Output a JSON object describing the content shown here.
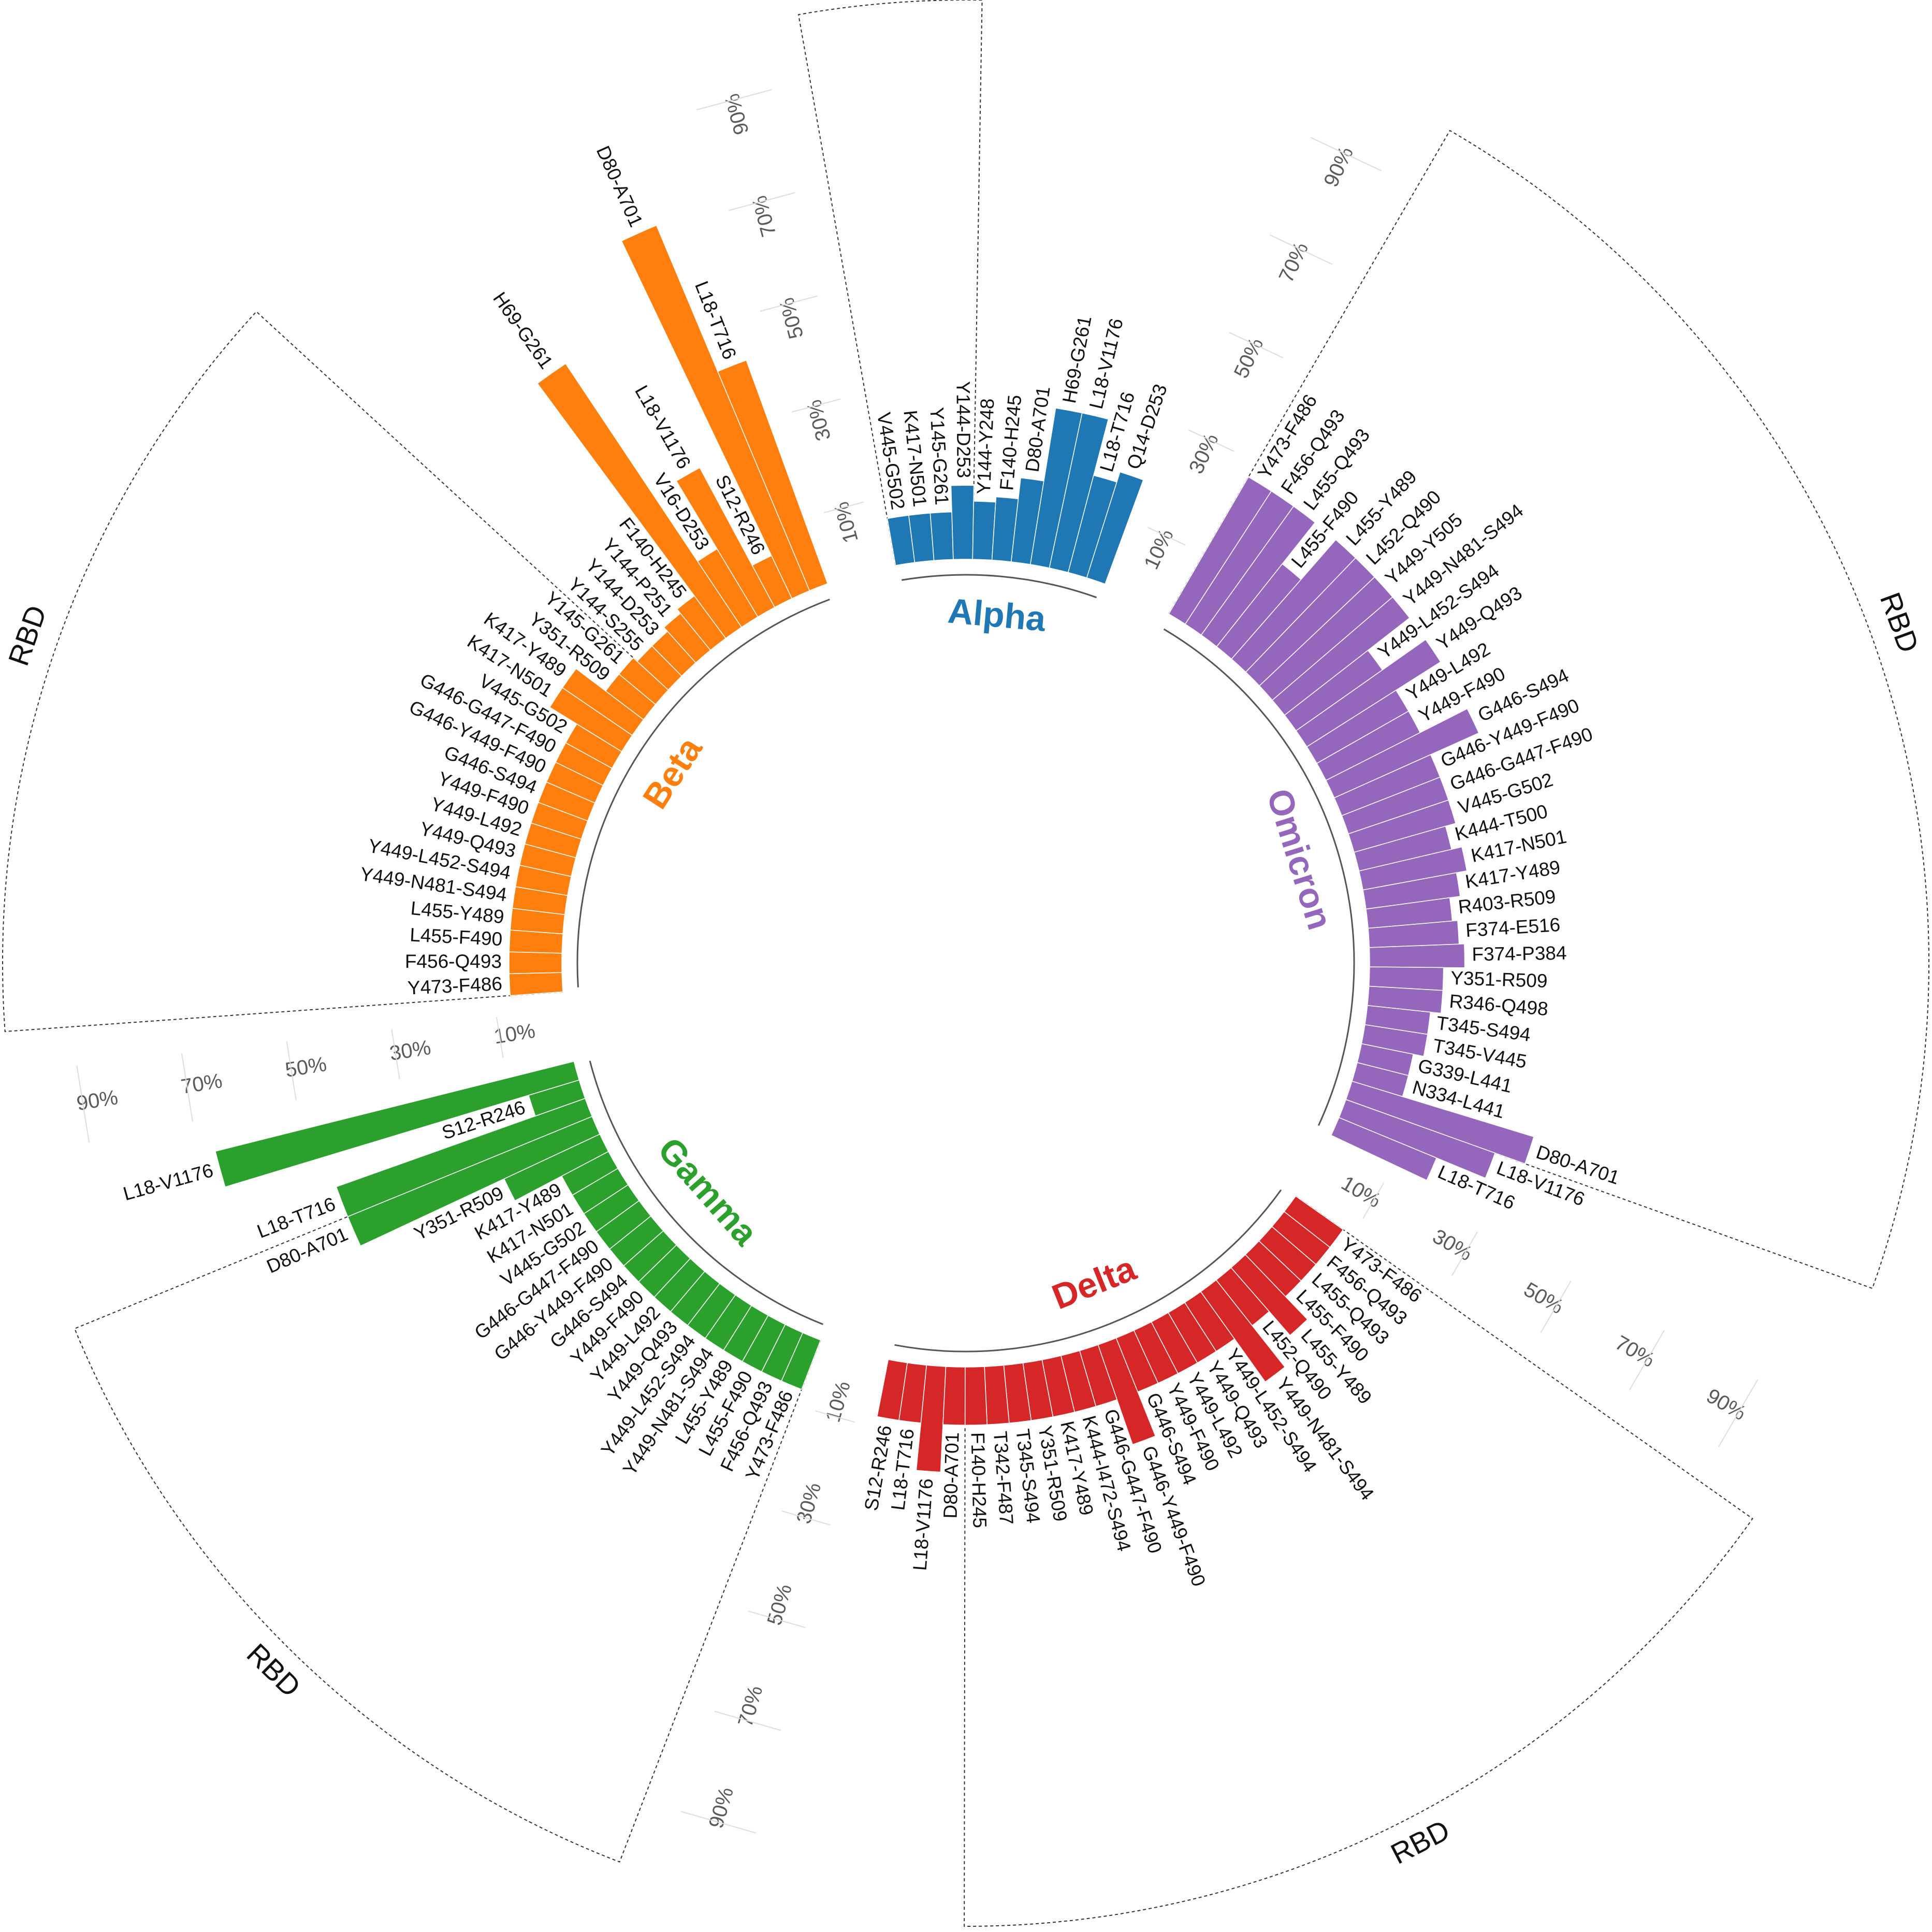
{
  "chart_data": {
    "type": "bar",
    "layout": "circular",
    "title": "",
    "tick_labels": [
      "10%",
      "30%",
      "50%",
      "70%",
      "90%"
    ],
    "ylim": [
      0,
      100
    ],
    "region_label": "RBD",
    "series": [
      {
        "name": "Alpha",
        "color": "#1f77b4",
        "categories": [
          "V445-G502",
          "K417-N501",
          "Y145-G261",
          "Y144-D253",
          "Y144-Y248",
          "F140-H245",
          "D80-A701",
          "H69-G261",
          "L18-V1176",
          "L18-T716",
          "Q14-D253"
        ],
        "values": [
          9,
          9,
          9,
          14,
          11,
          12,
          16,
          30,
          30,
          19,
          21
        ]
      },
      {
        "name": "Omicron",
        "color": "#9467bd",
        "categories": [
          "Y473-F486",
          "F456-Q493",
          "L455-Q493",
          "L455-F490",
          "L455-Y489",
          "L452-Q490",
          "Y449-Y505",
          "Y449-N481-S494",
          "Y449-L452-S494",
          "Y449-Q493",
          "Y449-L492",
          "Y449-F490",
          "G446-S494",
          "G446-Y449-F490",
          "G446-G447-F490",
          "V445-G502",
          "K444-T500",
          "K417-N501",
          "K417-Y489",
          "R403-R509",
          "F374-E516",
          "F374-P384",
          "Y351-R509",
          "R346-Q498",
          "T345-S494",
          "T345-V445",
          "G339-L441",
          "N334-L441",
          "D80-A701",
          "L18-V1176",
          "L18-T716"
        ],
        "values": [
          30,
          30,
          30,
          20,
          30,
          30,
          30,
          30,
          20,
          30,
          20,
          20,
          30,
          20,
          20,
          20,
          18,
          20,
          18,
          16,
          17,
          18,
          14,
          14,
          12,
          12,
          10,
          10,
          36,
          30,
          20
        ]
      },
      {
        "name": "Delta",
        "color": "#d62728",
        "categories": [
          "Y473-F486",
          "F456-Q493",
          "L455-Q493",
          "L455-F490",
          "L455-Y489",
          "L452-Q490",
          "Y449-N481-S494",
          "Y449-L452-S494",
          "Y449-Q493",
          "Y449-L492",
          "Y449-F490",
          "G446-S494",
          "G446-Y449-F490",
          "G446-G447-F490",
          "K444-I472-S494",
          "K417-Y489",
          "Y351-R509",
          "T345-S494",
          "T342-F487",
          "F140-H245",
          "D80-A701",
          "L18-V1176",
          "L18-T716",
          "S12-R246"
        ],
        "values": [
          11,
          11,
          11,
          11,
          17,
          11,
          21,
          11,
          11,
          11,
          11,
          11,
          20,
          11,
          11,
          11,
          11,
          11,
          11,
          11,
          11,
          20,
          11,
          11
        ]
      },
      {
        "name": "Gamma",
        "color": "#2ca02c",
        "categories": [
          "Y473-F486",
          "F456-Q493",
          "L455-F490",
          "L455-Y489",
          "Y449-N481-S494",
          "Y449-L452-S494",
          "Y449-Q493",
          "Y449-L492",
          "Y449-F490",
          "G446-S494",
          "G446-Y449-F490",
          "G446-G447-F490",
          "V445-G502",
          "K417-N501",
          "K417-Y489",
          "Y351-R509",
          "D80-A701",
          "L18-T716",
          "S12-R246",
          "L18-V1176"
        ],
        "values": [
          10,
          10,
          10,
          10,
          10,
          10,
          10,
          10,
          10,
          10,
          10,
          10,
          10,
          10,
          10,
          20,
          50,
          50,
          10,
          70
        ]
      },
      {
        "name": "Beta",
        "color": "#ff7f0e",
        "categories": [
          "Y473-F486",
          "F456-Q493",
          "L455-F490",
          "L455-Y489",
          "Y449-N481-S494",
          "Y449-L452-S494",
          "Y449-Q493",
          "Y449-L492",
          "Y449-F490",
          "G446-S494",
          "G446-Y449-F490",
          "G446-G447-F490",
          "V445-G502",
          "K417-N501",
          "K417-Y489",
          "Y351-R509",
          "Y145-G261",
          "Y144-S255",
          "Y144-D253",
          "Y144-P251",
          "F140-H245",
          "H69-G261",
          "V16-D253",
          "L18-V1176",
          "S12-R246",
          "D80-A701",
          "L18-T716"
        ],
        "values": [
          10,
          10,
          10,
          10,
          10,
          10,
          10,
          10,
          10,
          10,
          10,
          10,
          10,
          16,
          16,
          9,
          9,
          8,
          8,
          9,
          10,
          60,
          15,
          30,
          9,
          75,
          45
        ]
      }
    ],
    "rbd_regions": [
      {
        "series": "Alpha",
        "from": 0,
        "to": 3
      },
      {
        "series": "Omicron",
        "from": 0,
        "to": 28
      },
      {
        "series": "Delta",
        "from": 0,
        "to": 19
      },
      {
        "series": "Gamma",
        "from": 0,
        "to": 16
      },
      {
        "series": "Beta",
        "from": 0,
        "to": 16
      }
    ]
  }
}
